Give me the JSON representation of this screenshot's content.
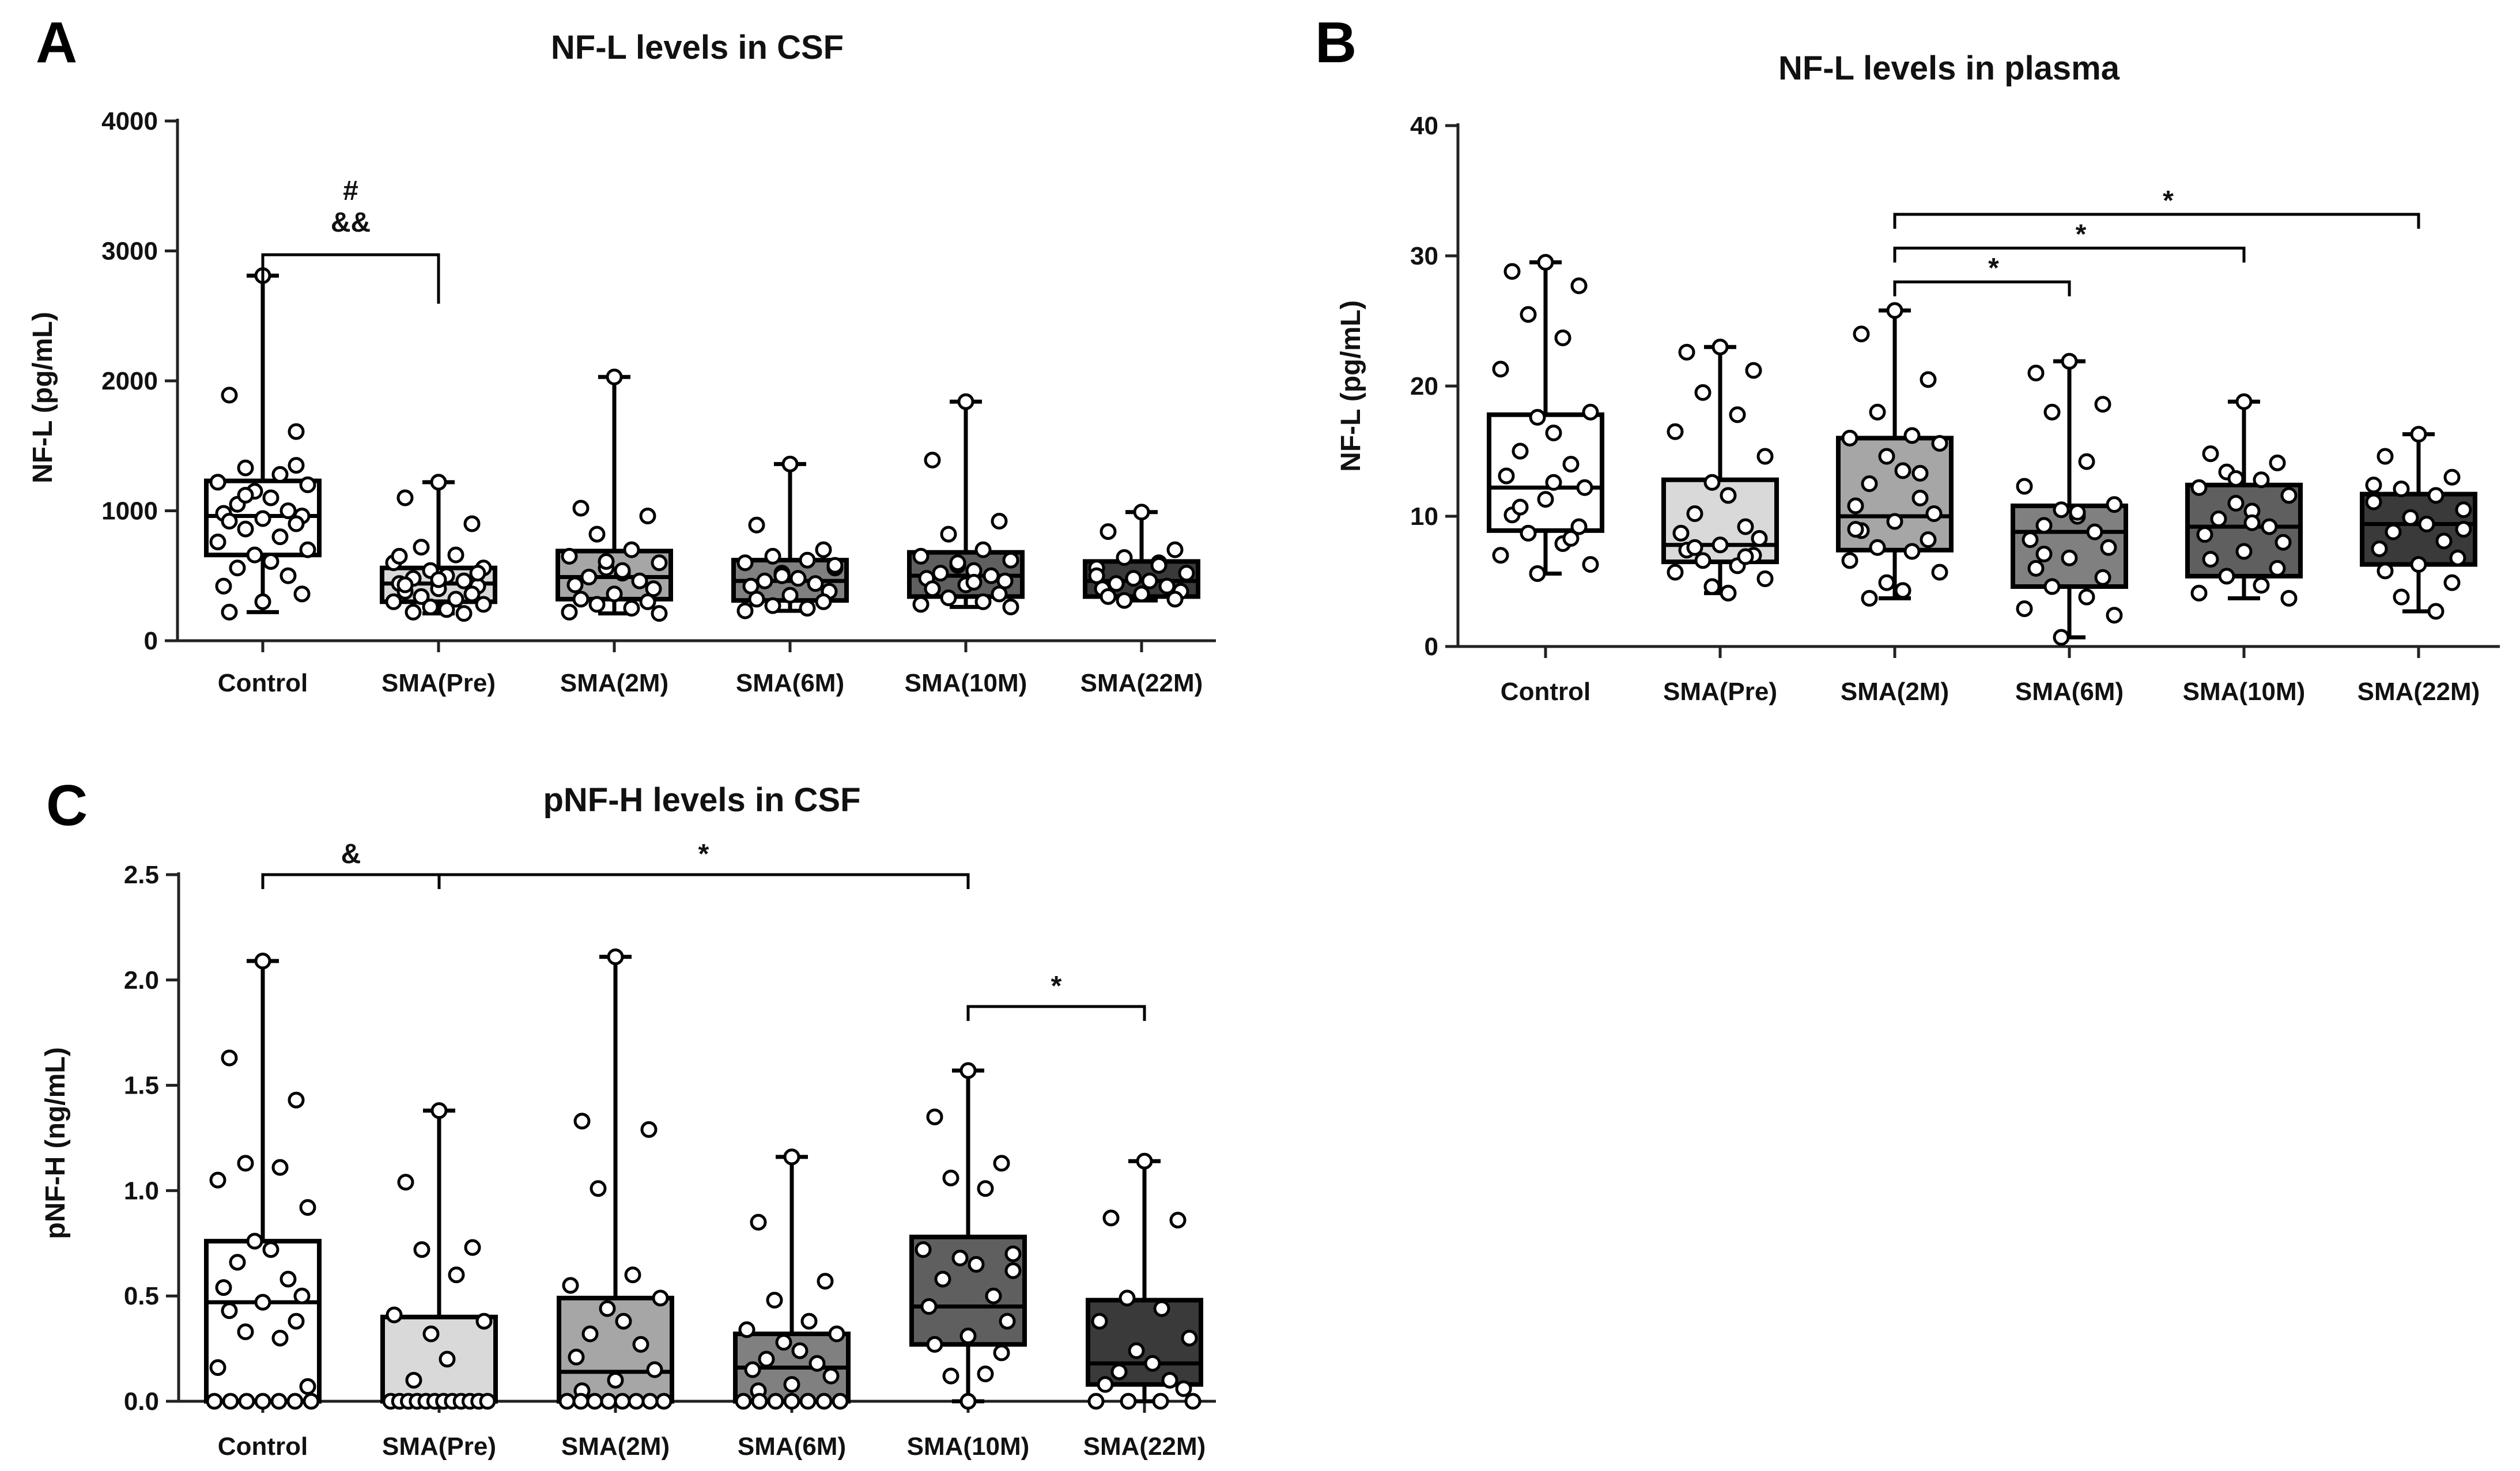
{
  "colors": {
    "Control": "#ffffff",
    "SMA(Pre)": "#d9d9d9",
    "SMA(2M)": "#a6a6a6",
    "SMA(6M)": "#808080",
    "SMA(10M)": "#5f5f5f",
    "SMA(22M)": "#3a3a3a"
  },
  "chart_data": [
    {
      "panel": "A",
      "type": "boxplot",
      "title": "NF-L levels in CSF",
      "xlabel": "",
      "ylabel": "NF-L (pg/mL)",
      "ylim": [
        0,
        4000
      ],
      "yticks": [
        0,
        1000,
        2000,
        3000,
        4000
      ],
      "ytick_labels": [
        "0",
        "1000",
        "2000",
        "3000",
        "4000"
      ],
      "categories": [
        "Control",
        "SMA(Pre)",
        "SMA(2M)",
        "SMA(6M)",
        "SMA(10M)",
        "SMA(22M)"
      ],
      "boxes": [
        {
          "min": 220,
          "q1": 660,
          "median": 960,
          "q3": 1230,
          "max": 2810
        },
        {
          "min": 210,
          "q1": 300,
          "median": 440,
          "q3": 560,
          "max": 1220
        },
        {
          "min": 210,
          "q1": 320,
          "median": 490,
          "q3": 690,
          "max": 2030
        },
        {
          "min": 230,
          "q1": 310,
          "median": 460,
          "q3": 620,
          "max": 1360
        },
        {
          "min": 260,
          "q1": 340,
          "median": 500,
          "q3": 680,
          "max": 1840
        },
        {
          "min": 310,
          "q1": 340,
          "median": 460,
          "q3": 610,
          "max": 990
        }
      ],
      "points": [
        [
          2810,
          1890,
          1610,
          1330,
          1280,
          1220,
          1200,
          1150,
          1100,
          1050,
          1000,
          980,
          960,
          940,
          920,
          900,
          860,
          800,
          760,
          700,
          660,
          610,
          560,
          500,
          420,
          360,
          300,
          220,
          1350,
          1120
        ],
        [
          1220,
          1100,
          900,
          720,
          660,
          600,
          560,
          540,
          500,
          480,
          460,
          440,
          420,
          400,
          380,
          360,
          340,
          320,
          300,
          280,
          260,
          240,
          220,
          210,
          650,
          520,
          470,
          430
        ],
        [
          2030,
          1020,
          960,
          820,
          700,
          650,
          600,
          560,
          520,
          490,
          460,
          430,
          400,
          360,
          320,
          300,
          280,
          250,
          220,
          210,
          610,
          540
        ],
        [
          1360,
          890,
          700,
          650,
          620,
          600,
          560,
          520,
          480,
          460,
          440,
          420,
          380,
          350,
          320,
          300,
          270,
          250,
          230,
          580,
          500
        ],
        [
          1840,
          1390,
          920,
          820,
          700,
          650,
          620,
          580,
          540,
          520,
          500,
          480,
          460,
          430,
          400,
          360,
          330,
          300,
          280,
          260,
          600,
          450
        ],
        [
          990,
          840,
          700,
          640,
          600,
          560,
          520,
          480,
          460,
          440,
          420,
          400,
          380,
          360,
          340,
          320,
          310,
          580,
          500
        ]
      ],
      "annotations": [
        {
          "from": "Control",
          "to": "SMA(Pre)",
          "labels": [
            "#",
            "&&"
          ]
        }
      ]
    },
    {
      "panel": "B",
      "type": "boxplot",
      "title": "NF-L levels in plasma",
      "xlabel": "",
      "ylabel": "NF-L (pg/mL)",
      "ylim": [
        0,
        40
      ],
      "yticks": [
        0,
        10,
        20,
        30,
        40
      ],
      "ytick_labels": [
        "0",
        "10",
        "20",
        "30",
        "40"
      ],
      "categories": [
        "Control",
        "SMA(Pre)",
        "SMA(2M)",
        "SMA(6M)",
        "SMA(10M)",
        "SMA(22M)"
      ],
      "boxes": [
        {
          "min": 5.6,
          "q1": 8.9,
          "median": 12.2,
          "q3": 17.8,
          "max": 29.5
        },
        {
          "min": 4.1,
          "q1": 6.5,
          "median": 7.8,
          "q3": 12.8,
          "max": 23.0
        },
        {
          "min": 3.7,
          "q1": 7.4,
          "median": 10.0,
          "q3": 16.0,
          "max": 25.8
        },
        {
          "min": 0.7,
          "q1": 4.6,
          "median": 8.8,
          "q3": 10.8,
          "max": 21.9
        },
        {
          "min": 3.7,
          "q1": 5.4,
          "median": 9.2,
          "q3": 12.4,
          "max": 18.8
        },
        {
          "min": 2.7,
          "q1": 6.3,
          "median": 9.4,
          "q3": 11.7,
          "max": 16.3
        }
      ],
      "points": [
        [
          29.5,
          28.8,
          27.7,
          25.5,
          23.7,
          21.3,
          18.0,
          17.6,
          16.4,
          15.0,
          14.0,
          13.1,
          12.2,
          11.3,
          10.1,
          9.2,
          8.7,
          7.9,
          7.0,
          6.3,
          5.6,
          12.6,
          10.7,
          8.3
        ],
        [
          23.0,
          22.6,
          21.2,
          19.5,
          17.8,
          16.5,
          14.6,
          12.6,
          11.6,
          10.2,
          9.2,
          8.7,
          8.3,
          7.8,
          7.4,
          7.0,
          6.6,
          6.2,
          5.7,
          5.2,
          4.6,
          4.1,
          7.6,
          6.9
        ],
        [
          25.8,
          24.0,
          20.5,
          18.0,
          16.2,
          16.0,
          15.6,
          14.6,
          13.5,
          12.5,
          11.4,
          10.8,
          10.2,
          9.6,
          8.9,
          8.2,
          7.6,
          7.3,
          6.6,
          5.7,
          4.9,
          4.3,
          3.7,
          13.3,
          9.0
        ],
        [
          21.9,
          21.0,
          18.6,
          18.0,
          14.2,
          12.3,
          10.9,
          10.5,
          10.0,
          9.3,
          8.8,
          8.2,
          7.6,
          6.8,
          6.0,
          5.3,
          4.6,
          3.8,
          2.9,
          2.4,
          0.7,
          10.3,
          7.1
        ],
        [
          18.8,
          14.8,
          14.1,
          13.4,
          12.8,
          12.2,
          11.6,
          11.0,
          10.4,
          9.8,
          9.2,
          8.6,
          8.0,
          7.3,
          6.7,
          6.0,
          5.4,
          4.7,
          4.1,
          3.7,
          12.9,
          9.5
        ],
        [
          16.3,
          14.6,
          13.0,
          12.1,
          11.6,
          11.1,
          10.5,
          9.9,
          9.4,
          8.8,
          8.1,
          7.5,
          6.8,
          6.3,
          5.8,
          4.9,
          3.8,
          2.7,
          12.4,
          9.0
        ]
      ],
      "annotations": [
        {
          "from": "SMA(2M)",
          "to": "SMA(6M)",
          "labels": [
            "*"
          ]
        },
        {
          "from": "SMA(2M)",
          "to": "SMA(10M)",
          "labels": [
            "*"
          ]
        },
        {
          "from": "SMA(2M)",
          "to": "SMA(22M)",
          "labels": [
            "*"
          ]
        }
      ]
    },
    {
      "panel": "C",
      "type": "boxplot",
      "title": "pNF-H levels in CSF",
      "xlabel": "",
      "ylabel": "pNF-H (ng/mL)",
      "ylim": [
        0,
        2.5
      ],
      "yticks": [
        0,
        0.5,
        1.0,
        1.5,
        2.0,
        2.5
      ],
      "ytick_labels": [
        "0.0",
        "0.5",
        "1.0",
        "1.5",
        "2.0",
        "2.5"
      ],
      "categories": [
        "Control",
        "SMA(Pre)",
        "SMA(2M)",
        "SMA(6M)",
        "SMA(10M)",
        "SMA(22M)"
      ],
      "boxes": [
        {
          "min": 0.0,
          "q1": 0.0,
          "median": 0.47,
          "q3": 0.76,
          "max": 2.09
        },
        {
          "min": 0.0,
          "q1": 0.0,
          "median": 0.0,
          "q3": 0.4,
          "max": 1.38
        },
        {
          "min": 0.0,
          "q1": 0.0,
          "median": 0.14,
          "q3": 0.49,
          "max": 2.11
        },
        {
          "min": 0.0,
          "q1": 0.0,
          "median": 0.16,
          "q3": 0.32,
          "max": 1.16
        },
        {
          "min": 0.0,
          "q1": 0.27,
          "median": 0.45,
          "q3": 0.78,
          "max": 1.57
        },
        {
          "min": 0.0,
          "q1": 0.08,
          "median": 0.18,
          "q3": 0.48,
          "max": 1.14
        }
      ],
      "points": [
        [
          2.09,
          1.63,
          1.43,
          1.13,
          1.11,
          1.05,
          0.92,
          0.76,
          0.72,
          0.66,
          0.58,
          0.54,
          0.5,
          0.47,
          0.43,
          0.38,
          0.33,
          0.3,
          0.16,
          0.07,
          0.0,
          0.0,
          0.0,
          0.0,
          0.0,
          0.0,
          0.0
        ],
        [
          1.38,
          1.04,
          0.73,
          0.72,
          0.6,
          0.41,
          0.38,
          0.32,
          0.2,
          0.1,
          0.0,
          0.0,
          0.0,
          0.0,
          0.0,
          0.0,
          0.0,
          0.0,
          0.0,
          0.0,
          0.0,
          0.0
        ],
        [
          2.11,
          1.33,
          1.29,
          1.01,
          0.6,
          0.55,
          0.49,
          0.44,
          0.38,
          0.32,
          0.27,
          0.21,
          0.15,
          0.1,
          0.05,
          0.0,
          0.0,
          0.0,
          0.0,
          0.0,
          0.0,
          0.0,
          0.0
        ],
        [
          1.16,
          0.85,
          0.57,
          0.48,
          0.38,
          0.34,
          0.32,
          0.28,
          0.24,
          0.2,
          0.18,
          0.15,
          0.12,
          0.08,
          0.05,
          0.0,
          0.0,
          0.0,
          0.0,
          0.0,
          0.0,
          0.0
        ],
        [
          1.57,
          1.35,
          1.13,
          1.06,
          1.01,
          0.72,
          0.7,
          0.68,
          0.65,
          0.58,
          0.5,
          0.45,
          0.38,
          0.31,
          0.27,
          0.23,
          0.12,
          0.13,
          0.0,
          0.62
        ],
        [
          1.14,
          0.87,
          0.86,
          0.49,
          0.44,
          0.38,
          0.3,
          0.24,
          0.18,
          0.14,
          0.1,
          0.08,
          0.06,
          0.0,
          0.0,
          0.0,
          0.0
        ]
      ],
      "annotations": [
        {
          "from": "Control",
          "to": "SMA(Pre)",
          "labels": [
            "&"
          ]
        },
        {
          "from": "SMA(Pre)",
          "to": "SMA(10M)",
          "labels": [
            "*"
          ]
        },
        {
          "from": "SMA(10M)",
          "to": "SMA(22M)",
          "labels": [
            "*"
          ]
        }
      ]
    }
  ]
}
